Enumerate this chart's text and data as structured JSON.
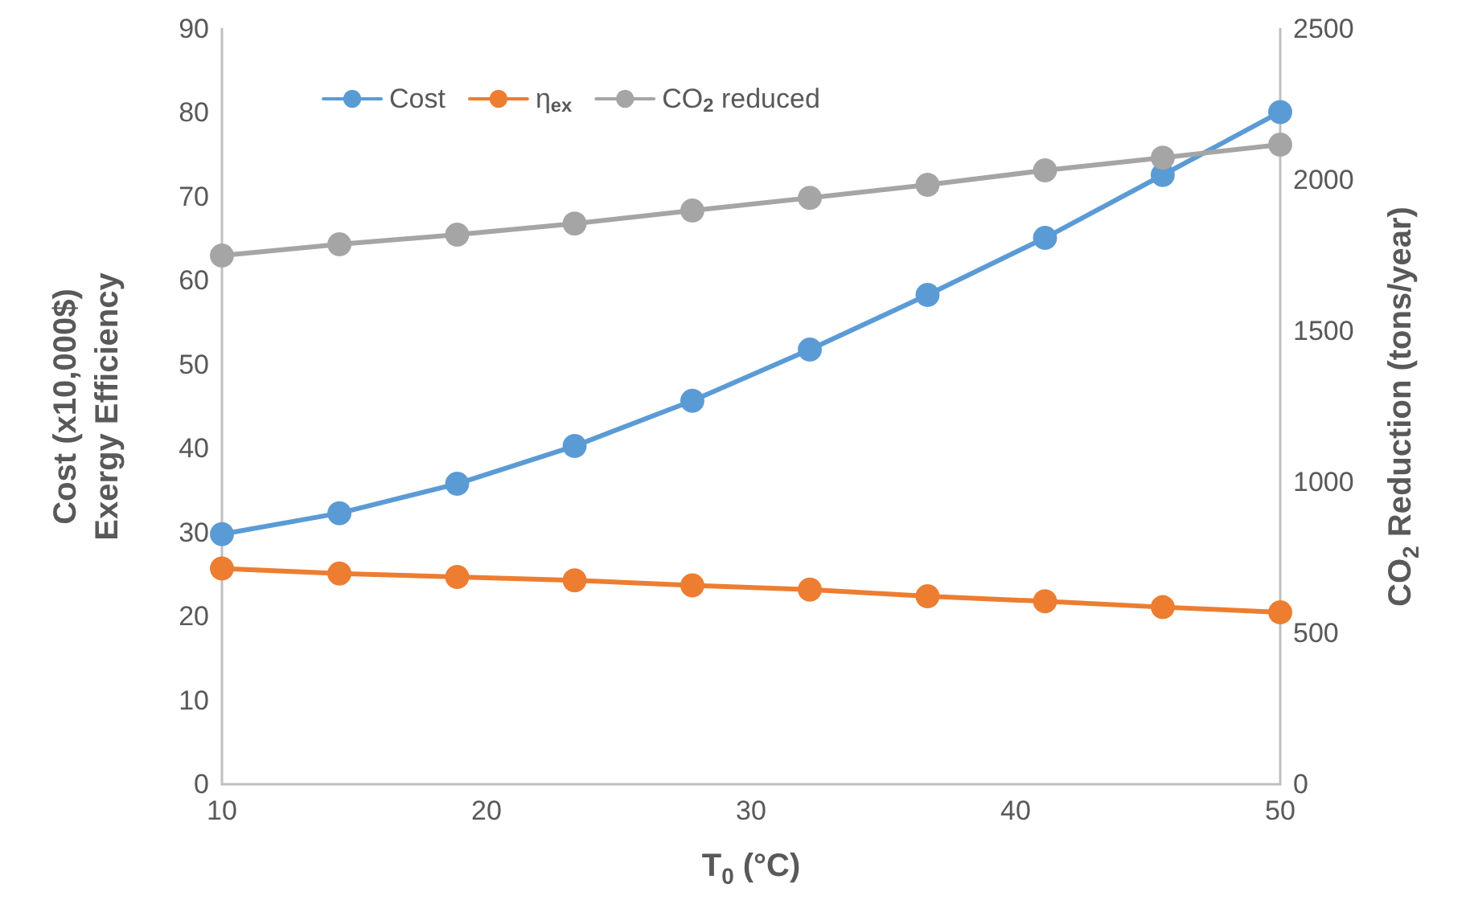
{
  "chart_data": {
    "type": "line",
    "xlabel": "T$_{0}$ (°C)",
    "ylabel": "Cost (x10,000$)\nExergy Efficiency",
    "y2label": "CO$_{2}$ Reduction (tons/year)",
    "x": [
      10,
      14.44,
      18.89,
      23.33,
      27.78,
      32.22,
      36.67,
      41.11,
      45.56,
      50
    ],
    "series": [
      {
        "name": "Cost",
        "color": "#5b9bd5",
        "values": [
          29.8,
          32.3,
          35.8,
          40.3,
          45.7,
          51.8,
          58.3,
          65.1,
          72.6,
          80.1
        ]
      },
      {
        "name": "η$_{ex}$",
        "color": "#ed7d31",
        "values": [
          25.7,
          25.1,
          24.7,
          24.3,
          23.7,
          23.2,
          22.4,
          21.8,
          21.1,
          20.5
        ]
      },
      {
        "name": "CO$_{2}$ reduced",
        "color": "#a5a5a5",
        "axis": "y2",
        "values": [
          1750,
          1787,
          1819,
          1856,
          1899,
          1941,
          1984,
          2032,
          2074,
          2117
        ]
      }
    ],
    "xlim": [
      10,
      50
    ],
    "xticks": [
      10,
      20,
      30,
      40,
      50
    ],
    "ylim": [
      0,
      90
    ],
    "yticks": [
      0,
      10,
      20,
      30,
      40,
      50,
      60,
      70,
      80,
      90
    ],
    "y2lim": [
      0,
      2500
    ],
    "y2ticks": [
      0,
      500,
      1000,
      1500,
      2000,
      2500
    ],
    "grid": false,
    "legend": "top left",
    "marker": "circle",
    "line_style": "solid"
  }
}
